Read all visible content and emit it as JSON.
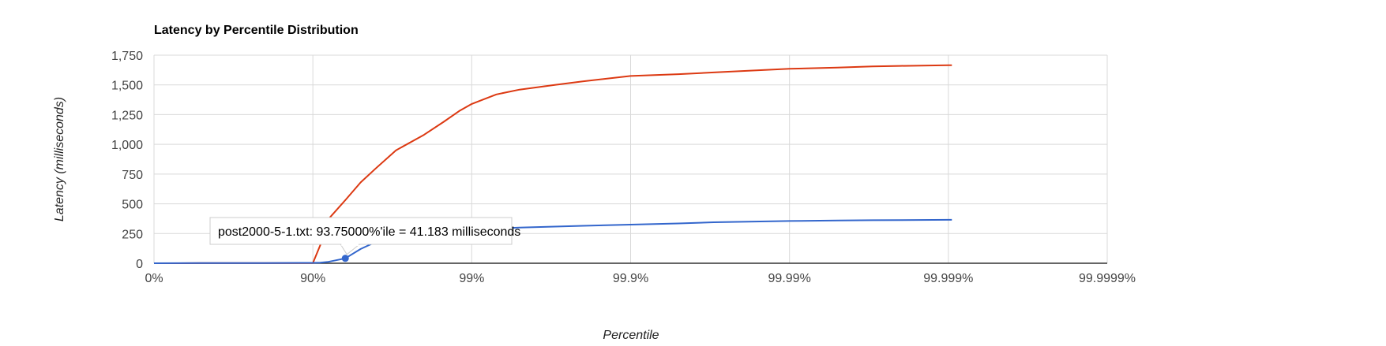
{
  "chart_data": {
    "type": "line",
    "title": "Latency by Percentile Distribution",
    "xlabel": "Percentile",
    "ylabel": "Latency (milliseconds)",
    "x_scale": "log-percentile (1/(1-p))",
    "x_ticks": [
      "0%",
      "90%",
      "99%",
      "99.9%",
      "99.99%",
      "99.999%",
      "99.9999%"
    ],
    "y_ticks": [
      "0",
      "250",
      "500",
      "750",
      "1,000",
      "1,250",
      "1,500",
      "1,750"
    ],
    "ylim": [
      0,
      1750
    ],
    "grid": true,
    "legend": "none",
    "colors": {
      "series1": "#dc3912",
      "series2": "#3366cc",
      "grid": "#d9d9d9",
      "axis": "#333333"
    },
    "series": [
      {
        "color": "#dc3912",
        "points": [
          [
            0,
            0
          ],
          [
            30,
            0
          ],
          [
            50,
            1
          ],
          [
            70,
            1
          ],
          [
            80,
            1
          ],
          [
            90,
            2
          ],
          [
            91,
            150
          ],
          [
            92,
            370
          ],
          [
            93.75,
            530
          ],
          [
            95,
            680
          ],
          [
            96,
            800
          ],
          [
            97,
            950
          ],
          [
            98,
            1080
          ],
          [
            98.5,
            1190
          ],
          [
            98.8,
            1280
          ],
          [
            99,
            1340
          ],
          [
            99.3,
            1420
          ],
          [
            99.5,
            1460
          ],
          [
            99.7,
            1500
          ],
          [
            99.8,
            1530
          ],
          [
            99.9,
            1575
          ],
          [
            99.95,
            1590
          ],
          [
            99.97,
            1605
          ],
          [
            99.99,
            1635
          ],
          [
            99.995,
            1645
          ],
          [
            99.997,
            1655
          ],
          [
            99.998,
            1660
          ],
          [
            99.999,
            1665
          ],
          [
            99.99905,
            1665
          ]
        ]
      },
      {
        "color": "#3366cc",
        "points": [
          [
            0,
            0
          ],
          [
            50,
            1
          ],
          [
            80,
            2
          ],
          [
            90,
            3
          ],
          [
            91,
            5
          ],
          [
            92,
            12
          ],
          [
            93.75,
            41.183
          ],
          [
            95,
            120
          ],
          [
            96,
            180
          ],
          [
            97,
            230
          ],
          [
            98,
            265
          ],
          [
            99,
            285
          ],
          [
            99.5,
            300
          ],
          [
            99.8,
            315
          ],
          [
            99.9,
            325
          ],
          [
            99.95,
            335
          ],
          [
            99.97,
            345
          ],
          [
            99.99,
            355
          ],
          [
            99.995,
            360
          ],
          [
            99.997,
            362
          ],
          [
            99.999,
            365
          ],
          [
            99.99905,
            365
          ]
        ]
      }
    ],
    "highlight_point": {
      "series": 1,
      "x": 93.75,
      "y": 41.183
    },
    "tooltip": "post2000-5-1.txt: 93.75000%'ile = 41.183 milliseconds"
  }
}
